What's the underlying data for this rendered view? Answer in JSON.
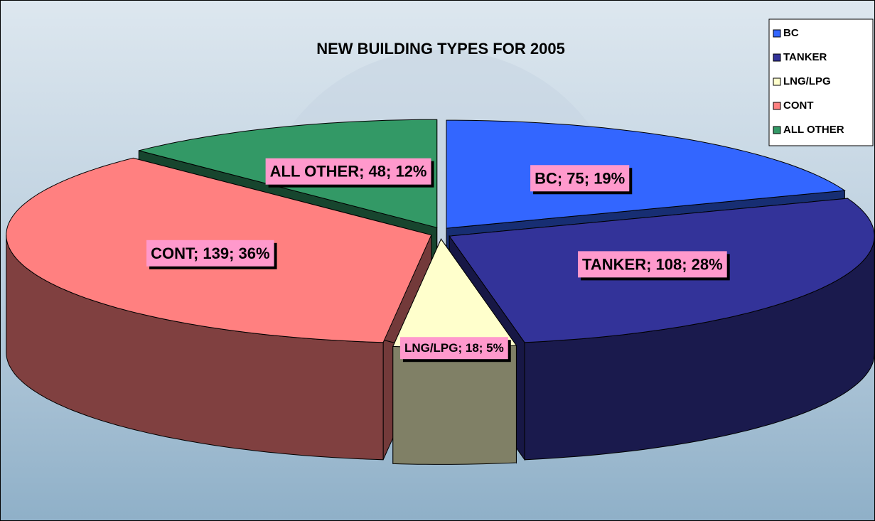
{
  "chart_data": {
    "type": "pie3d",
    "title": "NEW BUILDING TYPES FOR 2005",
    "categories": [
      "BC",
      "TANKER",
      "LNG/LPG",
      "CONT",
      "ALL OTHER"
    ],
    "values": [
      75,
      108,
      18,
      139,
      48
    ],
    "value_labels": [
      "BC; 75; 19%",
      "TANKER; 108; 28%",
      "LNG/LPG; 18; 5%",
      "CONT; 139; 36%",
      "ALL OTHER; 48; 12%"
    ],
    "colors": [
      "#3366ff",
      "#333399",
      "#ffffcc",
      "#ff8080",
      "#339966"
    ],
    "legend": "top-right"
  }
}
